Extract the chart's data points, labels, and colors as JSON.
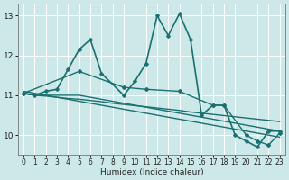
{
  "xlabel": "Humidex (Indice chaleur)",
  "bg_color": "#cce8e8",
  "grid_color": "#ffffff",
  "line_color": "#1a7070",
  "xlim": [
    -0.5,
    23.5
  ],
  "ylim": [
    9.5,
    13.3
  ],
  "yticks": [
    10,
    11,
    12,
    13
  ],
  "xticks": [
    0,
    1,
    2,
    3,
    4,
    5,
    6,
    7,
    8,
    9,
    10,
    11,
    12,
    13,
    14,
    15,
    16,
    17,
    18,
    19,
    20,
    21,
    22,
    23
  ],
  "lines": [
    {
      "x": [
        0,
        1,
        2,
        3,
        4,
        5,
        6,
        7,
        9,
        10,
        11,
        12,
        13,
        14,
        15,
        16,
        17,
        18,
        19,
        20,
        21,
        22,
        23
      ],
      "y": [
        11.05,
        11.0,
        11.1,
        11.15,
        11.65,
        12.15,
        12.4,
        11.55,
        11.0,
        11.35,
        11.8,
        13.0,
        12.5,
        13.05,
        12.4,
        10.5,
        10.75,
        10.75,
        10.0,
        9.85,
        9.7,
        10.1,
        10.1
      ],
      "lw": 1.2,
      "ms": 2.5
    },
    {
      "x": [
        0,
        5,
        9,
        11,
        14,
        17,
        18,
        20,
        21,
        22,
        23
      ],
      "y": [
        11.05,
        11.6,
        11.2,
        11.15,
        11.1,
        10.75,
        10.75,
        10.0,
        9.85,
        9.75,
        10.05
      ],
      "lw": 1.0,
      "ms": 2.0
    },
    {
      "x": [
        0,
        1,
        2,
        3,
        4,
        5,
        6,
        7,
        8,
        9,
        10,
        11,
        12,
        13,
        14,
        15,
        16,
        17,
        18,
        19,
        20,
        21,
        22,
        23
      ],
      "y": [
        11.05,
        11.0,
        11.0,
        11.0,
        11.0,
        11.0,
        10.95,
        10.9,
        10.85,
        10.8,
        10.75,
        10.7,
        10.65,
        10.6,
        10.55,
        10.5,
        10.45,
        10.4,
        10.35,
        10.3,
        10.25,
        10.2,
        10.15,
        10.1
      ],
      "lw": 1.0,
      "ms": 0
    },
    {
      "x": [
        0,
        1,
        2,
        3,
        4,
        5,
        6,
        7,
        8,
        9,
        10,
        11,
        12,
        13,
        14,
        15,
        16,
        17,
        18,
        19,
        20,
        21,
        22,
        23
      ],
      "y": [
        11.1,
        11.05,
        11.0,
        10.95,
        10.9,
        10.85,
        10.8,
        10.75,
        10.7,
        10.65,
        10.6,
        10.55,
        10.5,
        10.45,
        10.4,
        10.35,
        10.3,
        10.25,
        10.2,
        10.15,
        10.1,
        10.05,
        10.0,
        9.95
      ],
      "lw": 1.0,
      "ms": 0
    },
    {
      "x": [
        0,
        1,
        2,
        3,
        4,
        5,
        6,
        7,
        8,
        9,
        10,
        11,
        12,
        13,
        14,
        15,
        16,
        17,
        18,
        19,
        20,
        21,
        22,
        23
      ],
      "y": [
        11.05,
        11.0,
        10.98,
        10.95,
        10.92,
        10.9,
        10.87,
        10.84,
        10.8,
        10.77,
        10.74,
        10.71,
        10.68,
        10.65,
        10.62,
        10.58,
        10.55,
        10.52,
        10.49,
        10.46,
        10.43,
        10.4,
        10.37,
        10.34
      ],
      "lw": 1.0,
      "ms": 0
    }
  ]
}
